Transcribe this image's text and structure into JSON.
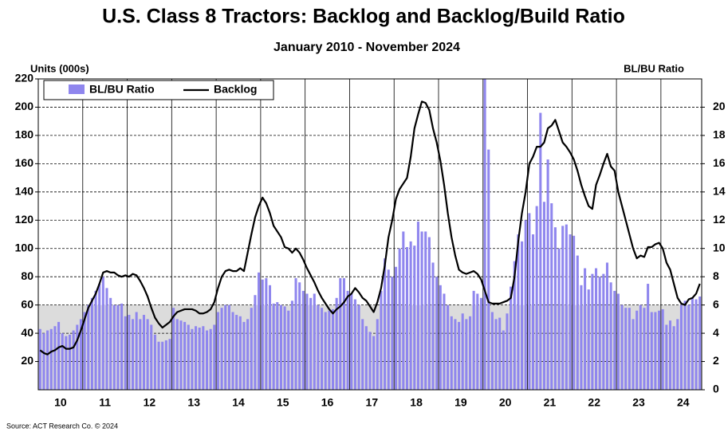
{
  "chart_data": {
    "type": "bar_line",
    "title": "U.S. Class 8 Tractors: Backlog and Backlog/Build Ratio",
    "subtitle": "January 2010 - November 2024",
    "y_label": "Units (000s)",
    "y2_label": "BL/BU Ratio",
    "source": "Source: ACT Research Co. © 2024",
    "categories": [
      null,
      null,
      null,
      null,
      null,
      null,
      "10",
      null,
      null,
      null,
      null,
      null,
      null,
      null,
      null,
      null,
      null,
      null,
      "11",
      null,
      null,
      null,
      null,
      null,
      null,
      null,
      null,
      null,
      null,
      null,
      "12",
      null,
      null,
      null,
      null,
      null,
      null,
      null,
      null,
      null,
      null,
      null,
      "13",
      null,
      null,
      null,
      null,
      null,
      null,
      null,
      null,
      null,
      null,
      null,
      "14",
      null,
      null,
      null,
      null,
      null,
      null,
      null,
      null,
      null,
      null,
      null,
      "15",
      null,
      null,
      null,
      null,
      null,
      null,
      null,
      null,
      null,
      null,
      null,
      "16",
      null,
      null,
      null,
      null,
      null,
      null,
      null,
      null,
      null,
      null,
      null,
      "17",
      null,
      null,
      null,
      null,
      null,
      null,
      null,
      null,
      null,
      null,
      null,
      "18",
      null,
      null,
      null,
      null,
      null,
      null,
      null,
      null,
      null,
      null,
      null,
      "19",
      null,
      null,
      null,
      null,
      null,
      null,
      null,
      null,
      null,
      null,
      null,
      "20",
      null,
      null,
      null,
      null,
      null,
      null,
      null,
      null,
      null,
      null,
      null,
      "21",
      null,
      null,
      null,
      null,
      null,
      null,
      null,
      null,
      null,
      null,
      null,
      "22",
      null,
      null,
      null,
      null,
      null,
      null,
      null,
      null,
      null,
      null,
      null,
      "23",
      null,
      null,
      null,
      null,
      null,
      null,
      null,
      null,
      null,
      null,
      null,
      "24",
      null,
      null,
      null,
      null
    ],
    "series": [
      {
        "name": "BL/BU Ratio",
        "color": "#8f86ee",
        "axis": "y2",
        "values": [
          4.3,
          4.0,
          4.2,
          4.3,
          4.5,
          4.8,
          4.0,
          3.8,
          3.9,
          4.2,
          4.6,
          5.0,
          5.5,
          6.0,
          6.5,
          7.0,
          7.5,
          8.0,
          7.2,
          6.5,
          6.0,
          6.0,
          6.1,
          5.2,
          5.3,
          5.0,
          5.5,
          5.0,
          5.3,
          5.0,
          4.6,
          3.9,
          3.4,
          3.4,
          3.5,
          3.6,
          5.8,
          5.0,
          4.9,
          4.8,
          4.6,
          4.3,
          4.5,
          4.4,
          4.5,
          4.2,
          4.3,
          4.6,
          5.5,
          5.8,
          6.0,
          6.0,
          5.5,
          5.3,
          5.2,
          4.8,
          5.0,
          5.8,
          6.7,
          8.3,
          7.8,
          7.9,
          7.4,
          6.1,
          6.2,
          6.0,
          5.9,
          5.6,
          6.3,
          7.9,
          7.6,
          7.0,
          6.8,
          6.5,
          6.8,
          6.0,
          5.8,
          5.5,
          5.6,
          5.7,
          6.5,
          7.9,
          7.9,
          7.0,
          6.8,
          6.4,
          6.0,
          5.0,
          4.5,
          4.1,
          3.8,
          5.0,
          7.0,
          9.3,
          8.5,
          8.0,
          8.7,
          10.0,
          11.2,
          10.1,
          10.5,
          10.2,
          11.9,
          11.2,
          11.2,
          10.8,
          9.0,
          8.0,
          7.4,
          6.8,
          6.0,
          5.2,
          5.0,
          4.8,
          5.4,
          5.0,
          5.2,
          7.0,
          6.8,
          6.5,
          22.0,
          17.0,
          5.5,
          5.0,
          5.1,
          4.2,
          5.4,
          7.3,
          9.1,
          11.0,
          10.5,
          12.0,
          12.5,
          11.0,
          13.0,
          19.6,
          13.3,
          16.3,
          13.2,
          11.5,
          10.0,
          11.6,
          11.7,
          11.0,
          10.9,
          9.5,
          7.4,
          8.6,
          7.1,
          8.2,
          8.6,
          8.0,
          8.2,
          9.0,
          7.6,
          7.0,
          6.8,
          6.0,
          5.8,
          5.8,
          5.0,
          5.6,
          6.0,
          5.8,
          7.5,
          5.5,
          5.5,
          5.6,
          5.7,
          4.6,
          4.9,
          4.5,
          5.0,
          6.0,
          6.3,
          6.0,
          6.5,
          6.4,
          6.6
        ]
      },
      {
        "name": "Backlog",
        "color": "#000000",
        "axis": "y",
        "values": [
          28,
          26,
          25,
          27,
          28,
          30,
          31,
          29,
          29,
          30,
          35,
          42,
          50,
          58,
          63,
          68,
          75,
          83,
          84,
          83,
          83,
          81,
          80,
          81,
          80,
          82,
          81,
          77,
          72,
          66,
          58,
          51,
          47,
          44,
          46,
          48,
          52,
          55,
          56,
          57,
          57,
          57,
          56,
          54,
          54,
          55,
          57,
          62,
          72,
          80,
          84,
          85,
          84,
          84,
          86,
          84,
          97,
          110,
          122,
          130,
          136,
          132,
          125,
          116,
          112,
          108,
          101,
          100,
          97,
          100,
          97,
          92,
          86,
          81,
          76,
          70,
          65,
          61,
          57,
          54,
          57,
          59,
          62,
          66,
          68,
          72,
          69,
          65,
          63,
          59,
          55,
          62,
          72,
          88,
          108,
          120,
          135,
          142,
          146,
          150,
          165,
          185,
          195,
          204,
          203,
          198,
          185,
          175,
          162,
          145,
          125,
          108,
          95,
          85,
          83,
          82,
          83,
          84,
          82,
          78,
          70,
          62,
          61,
          61,
          61,
          62,
          63,
          65,
          80,
          105,
          125,
          140,
          160,
          165,
          172,
          172,
          175,
          185,
          187,
          191,
          183,
          175,
          172,
          168,
          163,
          155,
          145,
          137,
          130,
          128,
          145,
          152,
          160,
          167,
          158,
          155,
          140,
          130,
          120,
          110,
          100,
          93,
          95,
          94,
          101,
          101,
          103,
          104,
          100,
          90,
          85,
          75,
          65,
          61,
          60,
          64,
          65,
          68,
          75
        ]
      }
    ],
    "ylim": [
      0,
      220
    ],
    "yticks": [
      20,
      40,
      60,
      80,
      100,
      120,
      140,
      160,
      180,
      200,
      220
    ],
    "y2lim": [
      0,
      22
    ],
    "y2ticks": [
      0,
      2,
      4,
      6,
      8,
      10,
      12,
      14,
      16,
      18,
      20
    ],
    "shaded_range": [
      0,
      60
    ],
    "grid": true,
    "legend": "top-left"
  }
}
